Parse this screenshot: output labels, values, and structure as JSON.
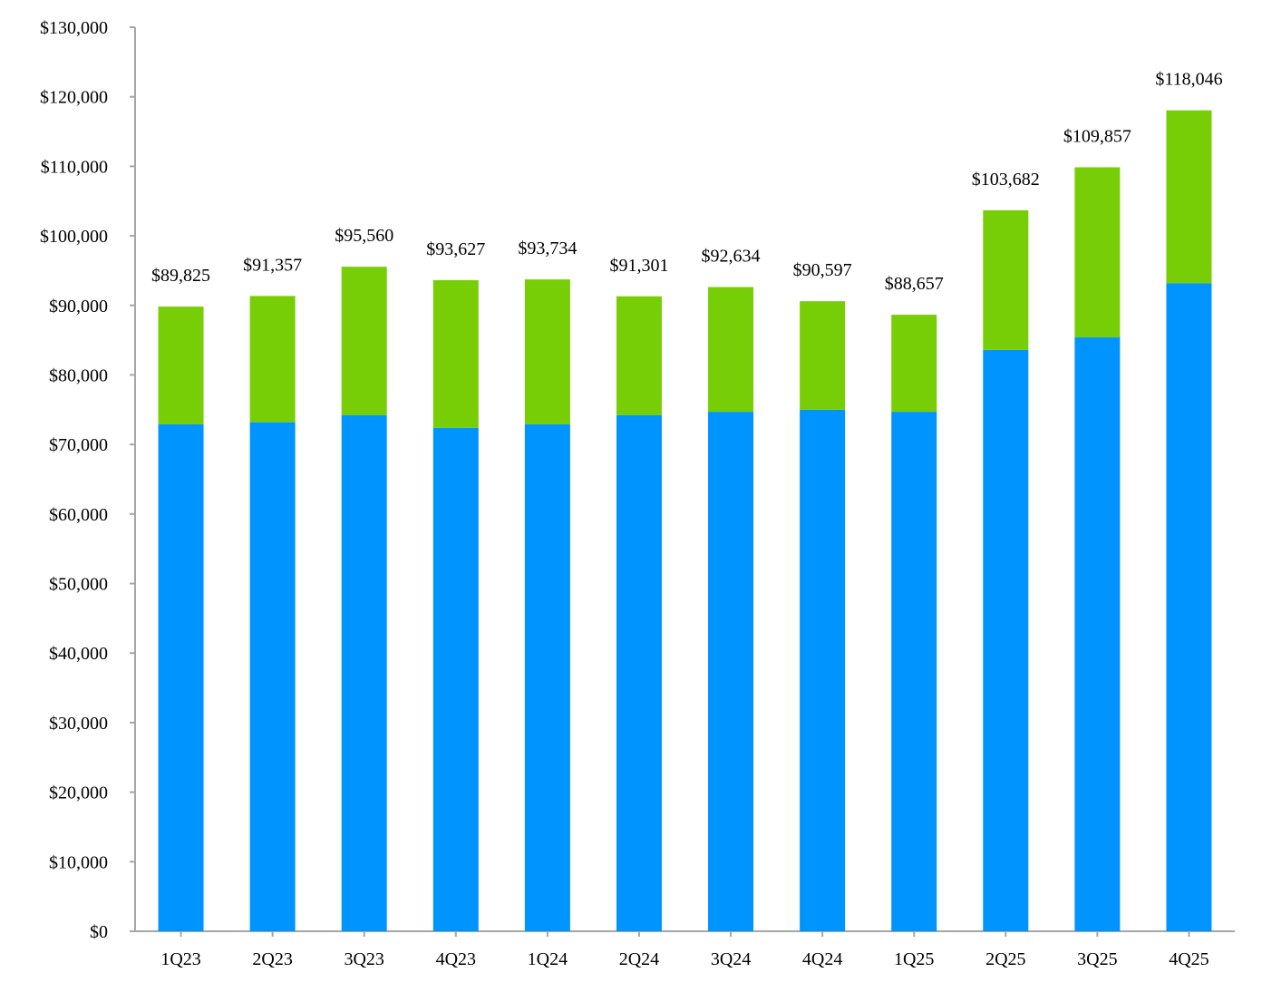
{
  "chart_data": {
    "type": "stacked-bar",
    "categories": [
      "1Q23",
      "2Q23",
      "3Q23",
      "4Q23",
      "1Q24",
      "2Q24",
      "3Q24",
      "4Q24",
      "1Q25",
      "2Q25",
      "3Q25",
      "4Q25"
    ],
    "totals": [
      89825,
      91357,
      95560,
      93627,
      93734,
      91301,
      92634,
      90597,
      88657,
      103682,
      109857,
      118046
    ],
    "total_labels": [
      "$89,825",
      "$91,357",
      "$95,560",
      "$93,627",
      "$93,734",
      "$91,301",
      "$92,634",
      "$90,597",
      "$88,657",
      "$103,682",
      "$109,857",
      "$118,046"
    ],
    "series": [
      {
        "values": [
          72900,
          73200,
          74200,
          72400,
          72900,
          74200,
          74700,
          75000,
          74700,
          83600,
          85400,
          93200
        ],
        "color": "#0094FF"
      },
      {
        "values": [
          16925,
          18157,
          21360,
          21227,
          20834,
          17101,
          17934,
          15597,
          13957,
          20082,
          24457,
          24846
        ],
        "color": "#77CE06"
      }
    ],
    "ylim": [
      0,
      130000
    ],
    "yticks": [
      0,
      10000,
      20000,
      30000,
      40000,
      50000,
      60000,
      70000,
      80000,
      90000,
      100000,
      110000,
      120000,
      130000
    ],
    "ytick_labels": [
      "$0",
      "$10,000",
      "$20,000",
      "$30,000",
      "$40,000",
      "$50,000",
      "$60,000",
      "$70,000",
      "$80,000",
      "$90,000",
      "$100,000",
      "$110,000",
      "$120,000",
      "$130,000"
    ],
    "grid": false,
    "axis_color": "#A6A6A6"
  }
}
